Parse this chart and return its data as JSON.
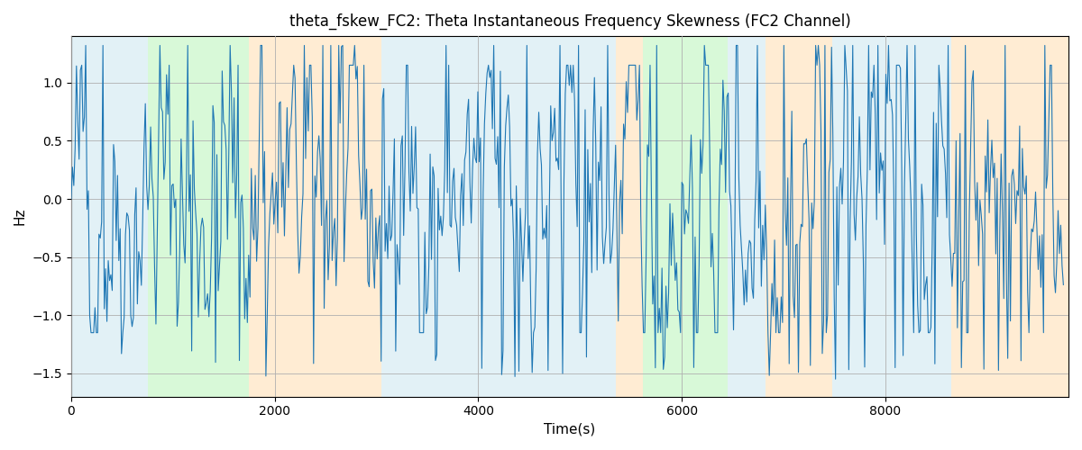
{
  "title": "theta_fskew_FC2: Theta Instantaneous Frequency Skewness (FC2 Channel)",
  "xlabel": "Time(s)",
  "ylabel": "Hz",
  "xlim": [
    0,
    9800
  ],
  "ylim": [
    -1.7,
    1.4
  ],
  "line_color": "#1f77b4",
  "line_width": 0.8,
  "background_color": "#ffffff",
  "grid_color": "#b0b0b0",
  "figsize": [
    12,
    5
  ],
  "dpi": 100,
  "bands": [
    {
      "start": 0,
      "end": 750,
      "color": "#add8e6",
      "alpha": 0.35
    },
    {
      "start": 750,
      "end": 1750,
      "color": "#90ee90",
      "alpha": 0.35
    },
    {
      "start": 1750,
      "end": 3050,
      "color": "#ffd59e",
      "alpha": 0.45
    },
    {
      "start": 3050,
      "end": 5350,
      "color": "#add8e6",
      "alpha": 0.35
    },
    {
      "start": 5350,
      "end": 5620,
      "color": "#ffd59e",
      "alpha": 0.45
    },
    {
      "start": 5620,
      "end": 6450,
      "color": "#90ee90",
      "alpha": 0.35
    },
    {
      "start": 6450,
      "end": 6820,
      "color": "#add8e6",
      "alpha": 0.35
    },
    {
      "start": 6820,
      "end": 7480,
      "color": "#ffd59e",
      "alpha": 0.45
    },
    {
      "start": 7480,
      "end": 8650,
      "color": "#add8e6",
      "alpha": 0.35
    },
    {
      "start": 8650,
      "end": 9800,
      "color": "#ffd59e",
      "alpha": 0.45
    }
  ],
  "seed": 42,
  "n_points": 750,
  "yticks": [
    -1.5,
    -1.0,
    -0.5,
    0.0,
    0.5,
    1.0
  ]
}
